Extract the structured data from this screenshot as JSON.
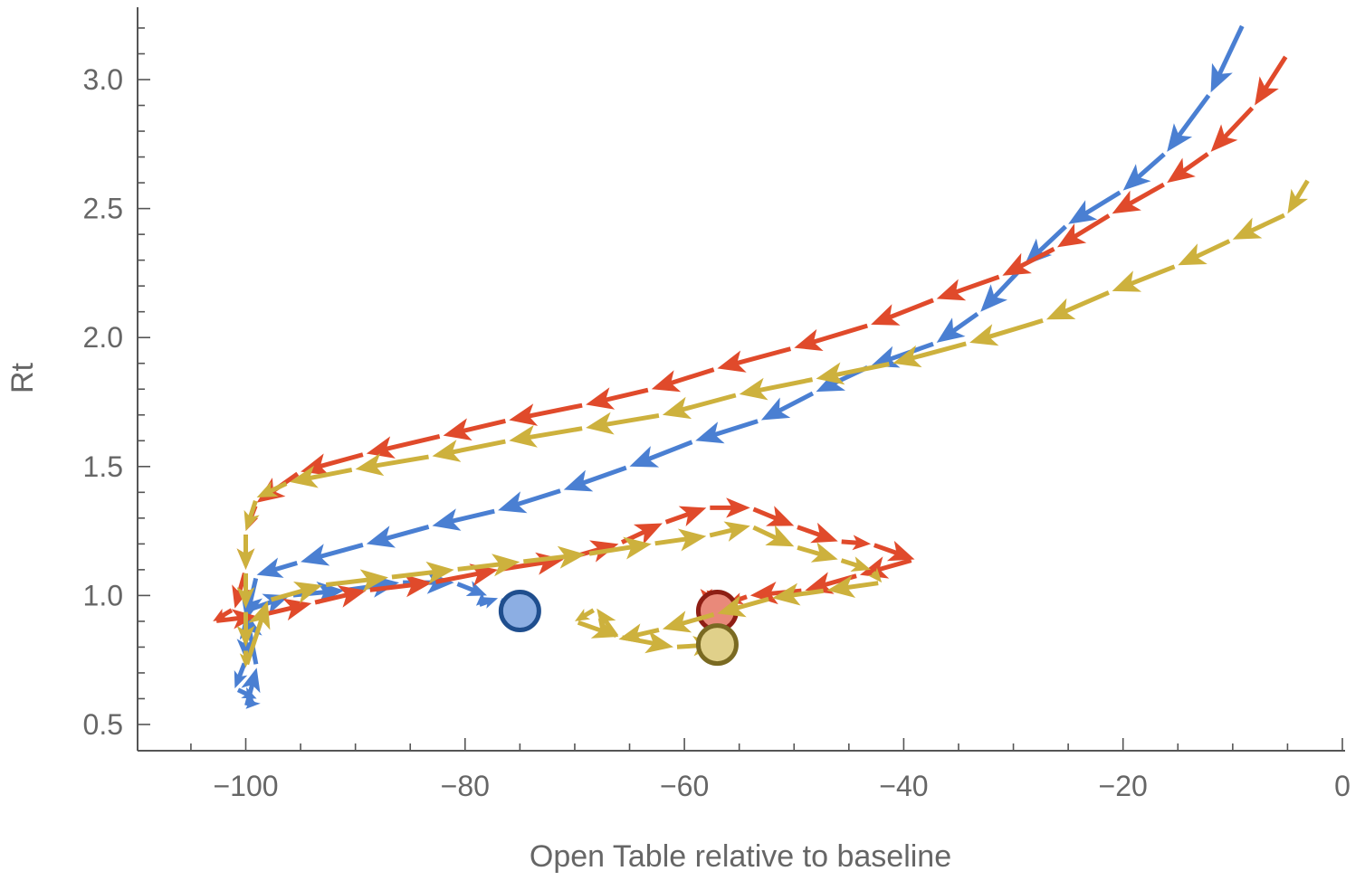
{
  "chart_data": {
    "type": "scatter",
    "style": "arrow-trajectory",
    "xlabel": "Open Table relative to baseline",
    "ylabel": "Rt",
    "xlim": [
      -110,
      0
    ],
    "ylim": [
      0.45,
      3.3
    ],
    "x_ticks": [
      -100,
      -80,
      -60,
      -40,
      -20,
      0
    ],
    "x_tick_labels": [
      "−100",
      "−80",
      "−60",
      "−40",
      "−20",
      "0"
    ],
    "y_ticks": [
      0.5,
      1.0,
      1.5,
      2.0,
      2.5,
      3.0
    ],
    "y_tick_labels": [
      "0.5",
      "1.0",
      "1.5",
      "2.0",
      "2.5",
      "3.0"
    ],
    "grid": false,
    "series": [
      {
        "color": "#4A7FD2",
        "end_marker_fill": "#8CAEE3",
        "end_marker_stroke": "#1F4E8E",
        "points": [
          [
            -9,
            3.22
          ],
          [
            -12,
            2.95
          ],
          [
            -16,
            2.72
          ],
          [
            -20,
            2.57
          ],
          [
            -25,
            2.44
          ],
          [
            -29,
            2.28
          ],
          [
            -33,
            2.1
          ],
          [
            -37,
            1.98
          ],
          [
            -43,
            1.89
          ],
          [
            -48,
            1.79
          ],
          [
            -53,
            1.68
          ],
          [
            -59,
            1.6
          ],
          [
            -65,
            1.5
          ],
          [
            -71,
            1.41
          ],
          [
            -77,
            1.33
          ],
          [
            -83,
            1.27
          ],
          [
            -89,
            1.2
          ],
          [
            -95,
            1.13
          ],
          [
            -99,
            1.08
          ],
          [
            -100,
            0.9
          ],
          [
            -100,
            0.75
          ],
          [
            -101,
            0.64
          ],
          [
            -99,
            0.6
          ],
          [
            -100,
            0.56
          ],
          [
            -99,
            0.72
          ],
          [
            -100,
            0.94
          ],
          [
            -96,
            1.0
          ],
          [
            -91,
            1.02
          ],
          [
            -86,
            1.05
          ],
          [
            -81,
            1.05
          ],
          [
            -78,
            1.0
          ],
          [
            -79,
            0.96
          ],
          [
            -77,
            0.99
          ],
          [
            -75,
            0.94
          ]
        ]
      },
      {
        "color": "#E04A2B",
        "end_marker_fill": "#E9897A",
        "end_marker_stroke": "#8E1E14",
        "points": [
          [
            -5,
            3.1
          ],
          [
            -8,
            2.9
          ],
          [
            -12,
            2.72
          ],
          [
            -16,
            2.6
          ],
          [
            -21,
            2.48
          ],
          [
            -26,
            2.35
          ],
          [
            -31,
            2.24
          ],
          [
            -37,
            2.15
          ],
          [
            -43,
            2.05
          ],
          [
            -50,
            1.96
          ],
          [
            -57,
            1.88
          ],
          [
            -63,
            1.8
          ],
          [
            -69,
            1.74
          ],
          [
            -76,
            1.68
          ],
          [
            -82,
            1.62
          ],
          [
            -89,
            1.55
          ],
          [
            -95,
            1.48
          ],
          [
            -99,
            1.36
          ],
          [
            -100,
            1.25
          ],
          [
            -100,
            1.1
          ],
          [
            -101,
            0.95
          ],
          [
            -103,
            0.9
          ],
          [
            -99,
            0.92
          ],
          [
            -94,
            0.97
          ],
          [
            -89,
            1.02
          ],
          [
            -83,
            1.05
          ],
          [
            -77,
            1.1
          ],
          [
            -71,
            1.14
          ],
          [
            -66,
            1.2
          ],
          [
            -62,
            1.28
          ],
          [
            -58,
            1.34
          ],
          [
            -54,
            1.34
          ],
          [
            -50,
            1.27
          ],
          [
            -46,
            1.21
          ],
          [
            -43,
            1.2
          ],
          [
            -39,
            1.14
          ],
          [
            -44,
            1.08
          ],
          [
            -49,
            1.02
          ],
          [
            -54,
            1.0
          ],
          [
            -56,
            0.97
          ],
          [
            -58,
            1.02
          ],
          [
            -58,
            0.97
          ],
          [
            -57,
            0.94
          ]
        ]
      },
      {
        "color": "#CDB13D",
        "end_marker_fill": "#E0D08A",
        "end_marker_stroke": "#7A6A22",
        "points": [
          [
            -3,
            2.62
          ],
          [
            -5,
            2.48
          ],
          [
            -10,
            2.38
          ],
          [
            -15,
            2.28
          ],
          [
            -21,
            2.18
          ],
          [
            -27,
            2.07
          ],
          [
            -34,
            1.98
          ],
          [
            -41,
            1.9
          ],
          [
            -48,
            1.84
          ],
          [
            -55,
            1.78
          ],
          [
            -62,
            1.7
          ],
          [
            -69,
            1.65
          ],
          [
            -76,
            1.6
          ],
          [
            -83,
            1.54
          ],
          [
            -90,
            1.49
          ],
          [
            -96,
            1.44
          ],
          [
            -99,
            1.38
          ],
          [
            -100,
            1.25
          ],
          [
            -100,
            1.1
          ],
          [
            -100,
            0.95
          ],
          [
            -100,
            0.8
          ],
          [
            -100,
            0.72
          ],
          [
            -98,
            0.98
          ],
          [
            -93,
            1.04
          ],
          [
            -87,
            1.07
          ],
          [
            -81,
            1.1
          ],
          [
            -75,
            1.13
          ],
          [
            -69,
            1.16
          ],
          [
            -63,
            1.2
          ],
          [
            -58,
            1.23
          ],
          [
            -54,
            1.27
          ],
          [
            -50,
            1.19
          ],
          [
            -46,
            1.14
          ],
          [
            -43,
            1.1
          ],
          [
            -42,
            1.05
          ],
          [
            -47,
            1.02
          ],
          [
            -52,
            0.99
          ],
          [
            -57,
            0.93
          ],
          [
            -62,
            0.87
          ],
          [
            -66,
            0.83
          ],
          [
            -68,
            0.95
          ],
          [
            -70,
            0.9
          ],
          [
            -66,
            0.84
          ],
          [
            -61,
            0.8
          ],
          [
            -57,
            0.81
          ]
        ]
      }
    ]
  }
}
